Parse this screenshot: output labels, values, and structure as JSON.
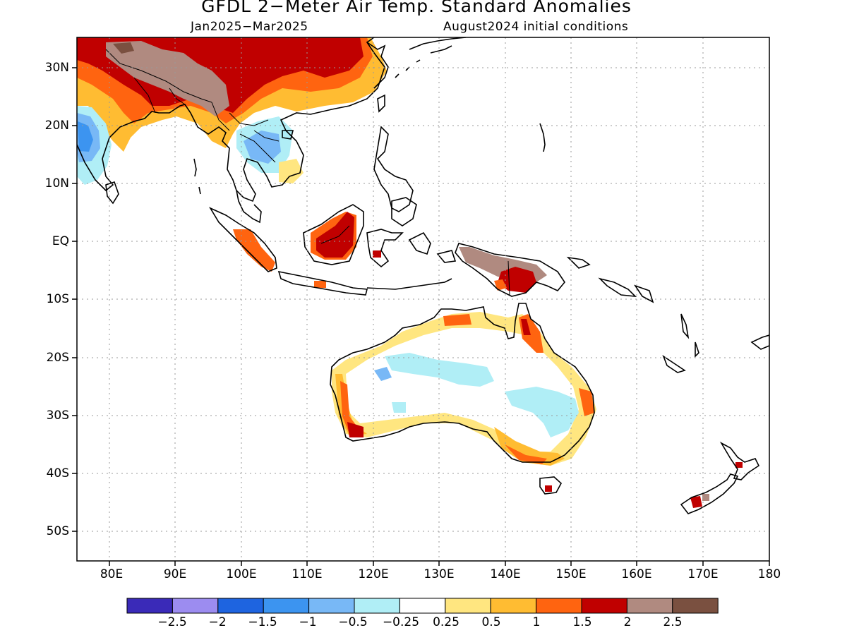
{
  "title": "GFDL 2−Meter Air Temp. Standard Anomalies",
  "period": "Jan2025−Mar2025",
  "init_conditions": "August2024 initial conditions",
  "lat_labels": [
    "30N",
    "20N",
    "10N",
    "EQ",
    "10S",
    "20S",
    "30S",
    "40S",
    "50S"
  ],
  "lon_labels": [
    "80E",
    "90E",
    "100E",
    "110E",
    "120E",
    "130E",
    "140E",
    "150E",
    "160E",
    "170E",
    "180"
  ],
  "colorbar": {
    "colors": [
      "#3a2ab8",
      "#9c8cf0",
      "#1e64e0",
      "#3c94f0",
      "#78b8f6",
      "#b0eef6",
      "#ffffff",
      "#ffe680",
      "#ffbc32",
      "#ff6410",
      "#c00000",
      "#b08a80",
      "#7a5040"
    ],
    "labels": [
      "−2.5",
      "−2",
      "−1.5",
      "−1",
      "−0.5",
      "−0.25",
      "0.25",
      "0.5",
      "1",
      "1.5",
      "2",
      "2.5"
    ]
  }
}
